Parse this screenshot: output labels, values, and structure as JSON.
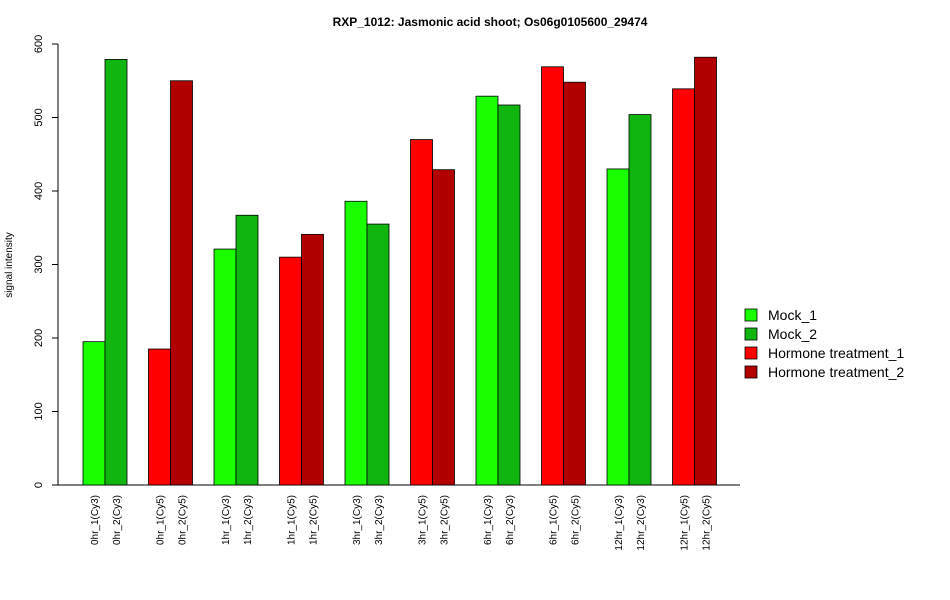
{
  "chart_data": {
    "type": "bar",
    "title": "RXP_1012: Jasmonic acid shoot; Os06g0105600_29474",
    "xlabel": "",
    "ylabel": "signal intensity",
    "ylim": [
      0,
      600
    ],
    "yticks": [
      0,
      100,
      200,
      300,
      400,
      500,
      600
    ],
    "bars": [
      {
        "label": "0hr_1(Cy3)",
        "value": 195,
        "series": "Mock_1"
      },
      {
        "label": "0hr_2(Cy3)",
        "value": 579,
        "series": "Mock_2"
      },
      {
        "label": "0hr_1(Cy5)",
        "value": 185,
        "series": "Hormone treatment_1"
      },
      {
        "label": "0hr_2(Cy5)",
        "value": 550,
        "series": "Hormone treatment_2"
      },
      {
        "label": "1hr_1(Cy3)",
        "value": 321,
        "series": "Mock_1"
      },
      {
        "label": "1hr_2(Cy3)",
        "value": 367,
        "series": "Mock_2"
      },
      {
        "label": "1hr_1(Cy5)",
        "value": 310,
        "series": "Hormone treatment_1"
      },
      {
        "label": "1hr_2(Cy5)",
        "value": 341,
        "series": "Hormone treatment_2"
      },
      {
        "label": "3hr_1(Cy3)",
        "value": 386,
        "series": "Mock_1"
      },
      {
        "label": "3hr_2(Cy3)",
        "value": 355,
        "series": "Mock_2"
      },
      {
        "label": "3hr_1(Cy5)",
        "value": 470,
        "series": "Hormone treatment_1"
      },
      {
        "label": "3hr_2(Cy5)",
        "value": 429,
        "series": "Hormone treatment_2"
      },
      {
        "label": "6hr_1(Cy3)",
        "value": 529,
        "series": "Mock_1"
      },
      {
        "label": "6hr_2(Cy3)",
        "value": 517,
        "series": "Mock_2"
      },
      {
        "label": "6hr_1(Cy5)",
        "value": 569,
        "series": "Hormone treatment_1"
      },
      {
        "label": "6hr_2(Cy5)",
        "value": 548,
        "series": "Hormone treatment_2"
      },
      {
        "label": "12hr_1(Cy3)",
        "value": 430,
        "series": "Mock_1"
      },
      {
        "label": "12hr_2(Cy3)",
        "value": 504,
        "series": "Mock_2"
      },
      {
        "label": "12hr_1(Cy5)",
        "value": 539,
        "series": "Hormone treatment_1"
      },
      {
        "label": "12hr_2(Cy5)",
        "value": 582,
        "series": "Hormone treatment_2"
      }
    ],
    "legend": {
      "placement": "right",
      "entries": [
        {
          "name": "Mock_1",
          "color": "#19ff00"
        },
        {
          "name": "Mock_2",
          "color": "#10b510"
        },
        {
          "name": "Hormone treatment_1",
          "color": "#ff0000"
        },
        {
          "name": "Hormone treatment_2",
          "color": "#b20000"
        }
      ]
    },
    "grid": false
  }
}
